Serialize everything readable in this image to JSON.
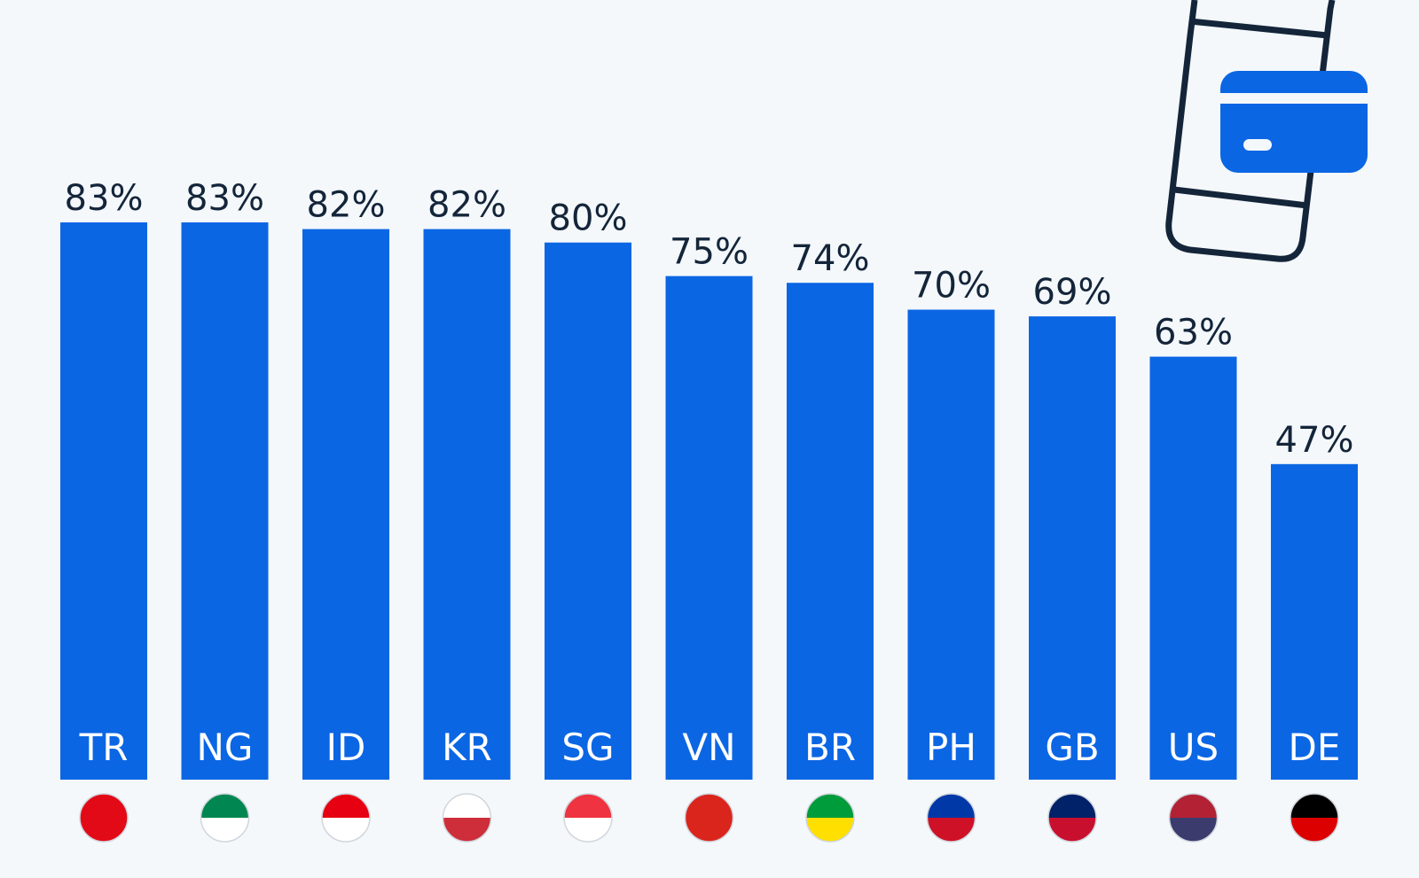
{
  "chart_data": {
    "type": "bar",
    "categories": [
      "TR",
      "NG",
      "ID",
      "KR",
      "SG",
      "VN",
      "BR",
      "PH",
      "GB",
      "US",
      "DE"
    ],
    "values": [
      83,
      83,
      82,
      82,
      80,
      75,
      74,
      70,
      69,
      63,
      47
    ],
    "value_labels": [
      "83%",
      "83%",
      "82%",
      "82%",
      "80%",
      "75%",
      "74%",
      "70%",
      "69%",
      "63%",
      "47%"
    ],
    "color": "#0b66e4"
  }
}
